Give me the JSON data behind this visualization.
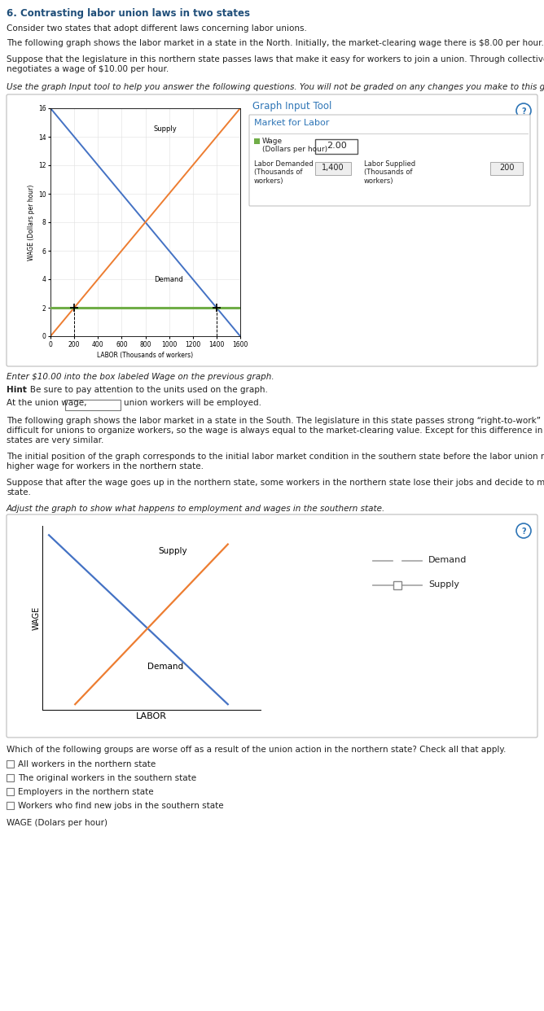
{
  "title": "6. Contrasting labor union laws in two states",
  "para1": "Consider two states that adopt different laws concerning labor unions.",
  "para2": "The following graph shows the labor market in a state in the North. Initially, the market-clearing wage there is $8.00 per hour.",
  "para3a": "Suppose that the legislature in this northern state passes laws that make it easy for workers to join a union. Through collective bargaining, the union",
  "para3b": "negotiates a wage of $10.00 per hour.",
  "para4_italic": "Use the graph Input tool to help you answer the following questions. You will not be graded on any changes you make to this graph.",
  "graph1_title": "Graph Input Tool",
  "graph1_subtitle": "Market for Labor",
  "graph1_wage_value": "2.00",
  "graph1_labor_demanded_value": "1,400",
  "graph1_labor_supplied_value": "200",
  "graph1_ylabel": "WAGE (Dollars per hour)",
  "graph1_xlabel": "LABOR (Thousands of workers)",
  "graph1_supply_label": "Supply",
  "graph1_demand_label": "Demand",
  "graph1_xticks": [
    0,
    200,
    400,
    600,
    800,
    1000,
    1200,
    1400,
    1600
  ],
  "graph1_yticks": [
    0,
    2,
    4,
    6,
    8,
    10,
    12,
    14,
    16
  ],
  "graph1_demand_color": "#4472c4",
  "graph1_supply_color": "#ed7d31",
  "graph1_wage_line_color": "#70ad47",
  "text_italic1": "Enter $10.00 into the box labeled Wage on the previous graph.",
  "text_hint_rest": ": Be sure to pay attention to the units used on the graph.",
  "text_union1": "At the union wage,",
  "text_union2": "union workers will be employed.",
  "para_south1a": "The following graph shows the labor market in a state in the South. The legislature in this state passes strong “right-to-work” laws that make it very",
  "para_south1b": "difficult for unions to organize workers, so the wage is always equal to the market-clearing value. Except for this difference in legislation, the two",
  "para_south1c": "states are very similar.",
  "para_south2a": "The initial position of the graph corresponds to the initial labor market condition in the southern state before the labor union negotiated the new,",
  "para_south2b": "higher wage for workers in the northern state.",
  "para_south3a": "Suppose that after the wage goes up in the northern state, some workers in the northern state lose their jobs and decide to move to the southern",
  "para_south3b": "state.",
  "italic_adjust": "Adjust the graph to show what happens to employment and wages in the southern state.",
  "graph2_supply_label": "Supply",
  "graph2_demand_label": "Demand",
  "graph2_xlabel": "LABOR",
  "graph2_ylabel": "WAGE",
  "graph2_demand_color": "#4472c4",
  "graph2_supply_color": "#ed7d31",
  "legend_demand_label": "Demand",
  "legend_supply_label": "Supply",
  "checkbox_question": "Which of the following groups are worse off as a result of the union action in the northern state? Check all that apply.",
  "checkbox_labels": [
    "All workers in the northern state",
    "The original workers in the southern state",
    "Employers in the northern state",
    "Workers who find new jobs in the southern state"
  ],
  "wage_bottom_label": "WAGE (Dolars per hour)",
  "title_color": "#1f4e79",
  "blue_color": "#2e75b6",
  "green_color": "#70ad47"
}
